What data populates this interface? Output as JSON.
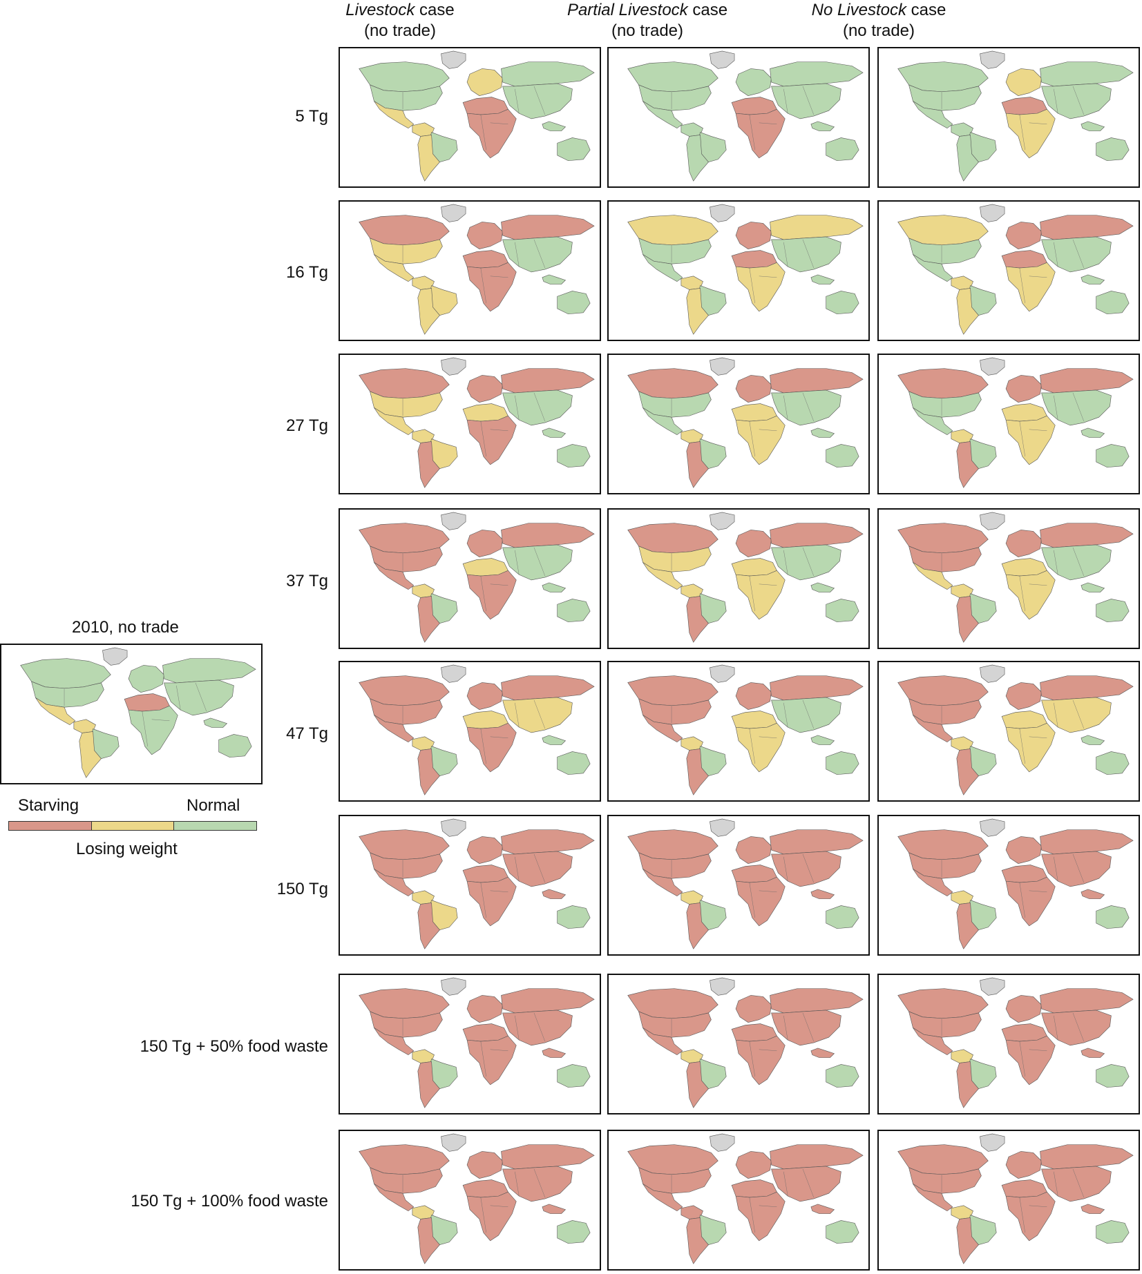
{
  "columns": [
    {
      "name": "Livestock",
      "suffix": " case",
      "sub": "(no trade)"
    },
    {
      "name": "Partial Livestock",
      "suffix": " case",
      "sub": "(no trade)"
    },
    {
      "name": "No Livestock",
      "suffix": " case",
      "sub": "(no trade)"
    }
  ],
  "rows": [
    {
      "label": "5 Tg"
    },
    {
      "label": "16 Tg"
    },
    {
      "label": "27 Tg"
    },
    {
      "label": "37 Tg"
    },
    {
      "label": "47 Tg"
    },
    {
      "label": "150 Tg"
    },
    {
      "label": "150 Tg + 50% food waste"
    },
    {
      "label": "150 Tg + 100% food waste"
    }
  ],
  "baseline": {
    "title": "2010, no trade"
  },
  "legend": {
    "left_label": "Starving",
    "right_label": "Normal",
    "middle_label": "Losing weight",
    "colors": {
      "starving": "#d9978a",
      "losing_weight": "#ecd88a",
      "normal": "#b8d8b0",
      "no_data": "#d4d4d4"
    }
  },
  "map_status": {
    "baseline": [
      "normal",
      "normal",
      "losing_weight",
      "losing_weight",
      "normal",
      "losing_weight",
      "starving",
      "normal",
      "normal",
      "normal",
      "normal",
      "normal",
      "normal"
    ],
    "grid": [
      [
        [
          "normal",
          "normal",
          "losing_weight",
          "losing_weight",
          "normal",
          "losing_weight",
          "starving",
          "starving",
          "losing_weight",
          "normal",
          "normal",
          "normal",
          "normal"
        ],
        [
          "normal",
          "normal",
          "normal",
          "normal",
          "normal",
          "normal",
          "starving",
          "starving",
          "normal",
          "normal",
          "normal",
          "normal",
          "normal"
        ],
        [
          "normal",
          "normal",
          "normal",
          "normal",
          "normal",
          "normal",
          "starving",
          "losing_weight",
          "losing_weight",
          "normal",
          "normal",
          "normal",
          "normal"
        ]
      ],
      [
        [
          "starving",
          "losing_weight",
          "losing_weight",
          "losing_weight",
          "losing_weight",
          "losing_weight",
          "starving",
          "starving",
          "starving",
          "starving",
          "normal",
          "normal",
          "normal"
        ],
        [
          "losing_weight",
          "normal",
          "normal",
          "losing_weight",
          "normal",
          "losing_weight",
          "starving",
          "losing_weight",
          "starving",
          "losing_weight",
          "normal",
          "normal",
          "normal"
        ],
        [
          "losing_weight",
          "normal",
          "normal",
          "losing_weight",
          "normal",
          "losing_weight",
          "starving",
          "losing_weight",
          "starving",
          "starving",
          "normal",
          "normal",
          "normal"
        ]
      ],
      [
        [
          "starving",
          "losing_weight",
          "losing_weight",
          "losing_weight",
          "losing_weight",
          "starving",
          "losing_weight",
          "starving",
          "starving",
          "starving",
          "normal",
          "normal",
          "normal"
        ],
        [
          "starving",
          "normal",
          "normal",
          "losing_weight",
          "normal",
          "starving",
          "losing_weight",
          "losing_weight",
          "starving",
          "starving",
          "normal",
          "normal",
          "normal"
        ],
        [
          "starving",
          "normal",
          "normal",
          "losing_weight",
          "normal",
          "starving",
          "losing_weight",
          "losing_weight",
          "starving",
          "starving",
          "normal",
          "normal",
          "normal"
        ]
      ],
      [
        [
          "starving",
          "starving",
          "starving",
          "losing_weight",
          "normal",
          "starving",
          "losing_weight",
          "starving",
          "starving",
          "starving",
          "normal",
          "normal",
          "normal"
        ],
        [
          "starving",
          "losing_weight",
          "losing_weight",
          "losing_weight",
          "normal",
          "starving",
          "losing_weight",
          "losing_weight",
          "starving",
          "starving",
          "normal",
          "normal",
          "normal"
        ],
        [
          "starving",
          "starving",
          "losing_weight",
          "losing_weight",
          "normal",
          "starving",
          "losing_weight",
          "losing_weight",
          "starving",
          "starving",
          "normal",
          "normal",
          "normal"
        ]
      ],
      [
        [
          "starving",
          "starving",
          "starving",
          "losing_weight",
          "normal",
          "starving",
          "losing_weight",
          "starving",
          "starving",
          "starving",
          "losing_weight",
          "normal",
          "normal"
        ],
        [
          "starving",
          "starving",
          "starving",
          "losing_weight",
          "normal",
          "starving",
          "losing_weight",
          "losing_weight",
          "starving",
          "starving",
          "normal",
          "normal",
          "normal"
        ],
        [
          "starving",
          "starving",
          "starving",
          "losing_weight",
          "normal",
          "starving",
          "losing_weight",
          "losing_weight",
          "starving",
          "starving",
          "losing_weight",
          "normal",
          "normal"
        ]
      ],
      [
        [
          "starving",
          "starving",
          "starving",
          "losing_weight",
          "losing_weight",
          "starving",
          "starving",
          "starving",
          "starving",
          "starving",
          "starving",
          "normal",
          "starving"
        ],
        [
          "starving",
          "starving",
          "starving",
          "losing_weight",
          "normal",
          "starving",
          "starving",
          "starving",
          "starving",
          "starving",
          "starving",
          "normal",
          "starving"
        ],
        [
          "starving",
          "starving",
          "starving",
          "losing_weight",
          "normal",
          "starving",
          "starving",
          "starving",
          "starving",
          "starving",
          "starving",
          "normal",
          "starving"
        ]
      ],
      [
        [
          "starving",
          "starving",
          "starving",
          "losing_weight",
          "normal",
          "starving",
          "starving",
          "starving",
          "starving",
          "starving",
          "starving",
          "normal",
          "starving"
        ],
        [
          "starving",
          "starving",
          "starving",
          "losing_weight",
          "normal",
          "starving",
          "starving",
          "starving",
          "starving",
          "starving",
          "starving",
          "normal",
          "starving"
        ],
        [
          "starving",
          "starving",
          "starving",
          "losing_weight",
          "normal",
          "starving",
          "starving",
          "starving",
          "starving",
          "starving",
          "starving",
          "normal",
          "starving"
        ]
      ],
      [
        [
          "starving",
          "starving",
          "starving",
          "losing_weight",
          "normal",
          "starving",
          "starving",
          "starving",
          "starving",
          "starving",
          "starving",
          "normal",
          "starving"
        ],
        [
          "starving",
          "starving",
          "starving",
          "starving",
          "normal",
          "starving",
          "starving",
          "starving",
          "starving",
          "starving",
          "starving",
          "normal",
          "starving"
        ],
        [
          "starving",
          "starving",
          "starving",
          "losing_weight",
          "normal",
          "starving",
          "starving",
          "starving",
          "starving",
          "starving",
          "starving",
          "normal",
          "starving"
        ]
      ]
    ]
  }
}
